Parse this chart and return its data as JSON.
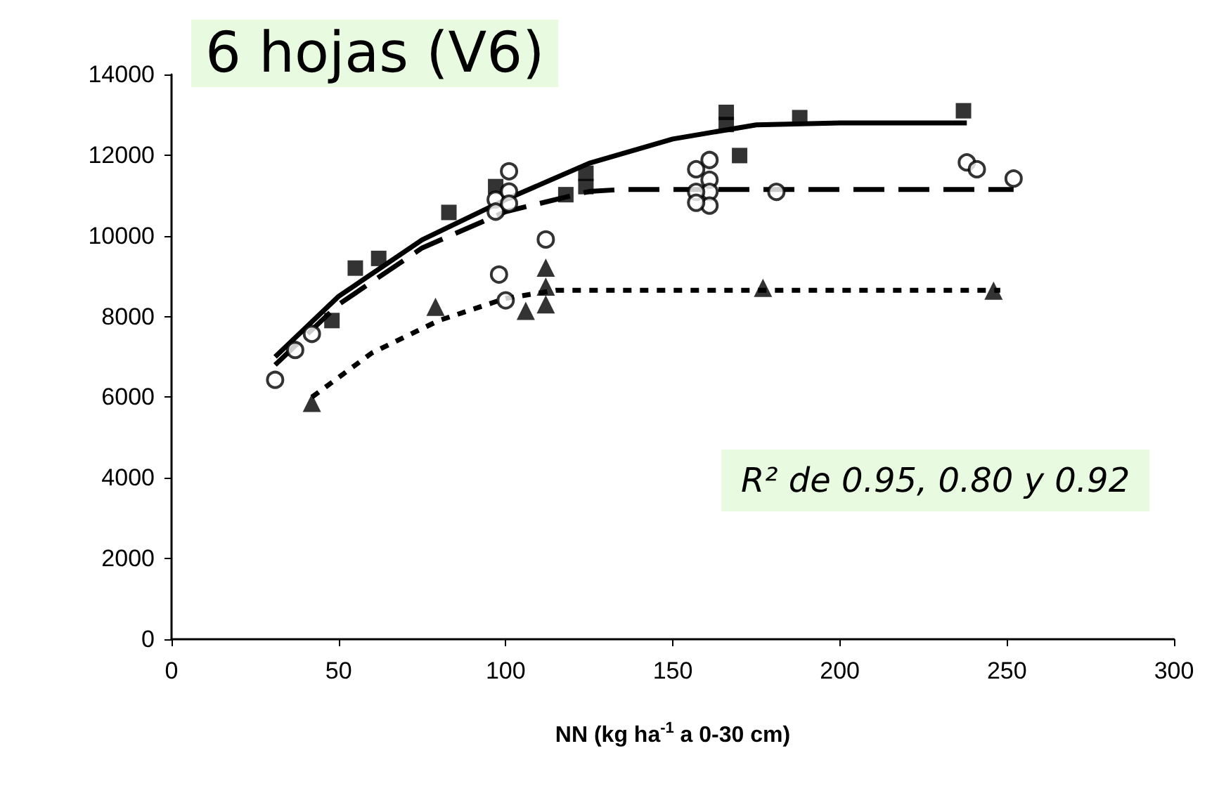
{
  "chart_data": {
    "type": "scatter",
    "title": "6 hojas (V6)",
    "xlabel": "NN (kg ha$^{-1}$ a 0-30 cm)",
    "annotations": [
      "R² de 0.95, 0.80 y 0.92"
    ],
    "xlim": [
      0,
      300
    ],
    "xticks": [
      0,
      50,
      100,
      150,
      200,
      250,
      300
    ],
    "ylim": [
      0,
      14000
    ],
    "yticks": [
      0,
      2000,
      4000,
      6000,
      8000,
      10000,
      12000,
      14000
    ],
    "grid": false,
    "series": [
      {
        "type": "scatter",
        "marker": "square",
        "color": "#000000",
        "x": [
          48,
          55,
          62,
          83,
          97,
          118,
          124,
          124,
          166,
          166,
          170,
          188,
          237
        ],
        "values": [
          7900,
          9200,
          9440,
          10580,
          11220,
          11020,
          11550,
          11220,
          13060,
          12760,
          11990,
          12930,
          13100
        ]
      },
      {
        "type": "scatter",
        "marker": "circle",
        "color": "#ffffff",
        "x": [
          31,
          37,
          42,
          97,
          97,
          101,
          101,
          101,
          98,
          100,
          112,
          157,
          161,
          161,
          161,
          161,
          157,
          157,
          181,
          238,
          241,
          252
        ],
        "values": [
          6430,
          7170,
          7570,
          10900,
          10600,
          11600,
          11100,
          10800,
          9040,
          8400,
          9910,
          11650,
          11880,
          11390,
          11090,
          10750,
          11090,
          10820,
          11090,
          11820,
          11650,
          11420
        ]
      },
      {
        "type": "scatter",
        "marker": "triangle",
        "color": "#000000",
        "x": [
          42,
          79,
          106,
          112,
          112,
          112,
          177,
          246
        ],
        "values": [
          5860,
          8240,
          8140,
          9210,
          8740,
          8300,
          8710,
          8640
        ]
      },
      {
        "type": "line",
        "marker": "none",
        "line_style": "solid",
        "color": "#000000",
        "x": [
          31,
          50,
          75,
          100,
          125,
          150,
          175,
          200,
          238
        ],
        "values": [
          7000,
          8500,
          9900,
          10900,
          11800,
          12400,
          12750,
          12800,
          12800
        ]
      },
      {
        "type": "line",
        "marker": "none",
        "line_style": "dashed",
        "color": "#000000",
        "x": [
          31,
          50,
          75,
          100,
          125,
          135,
          252
        ],
        "values": [
          6800,
          8300,
          9700,
          10600,
          11100,
          11150,
          11150
        ]
      },
      {
        "type": "line",
        "marker": "none",
        "line_style": "dotted",
        "color": "#000000",
        "x": [
          42,
          60,
          80,
          100,
          115,
          248
        ],
        "values": [
          6000,
          7100,
          7900,
          8450,
          8650,
          8650
        ]
      }
    ]
  }
}
